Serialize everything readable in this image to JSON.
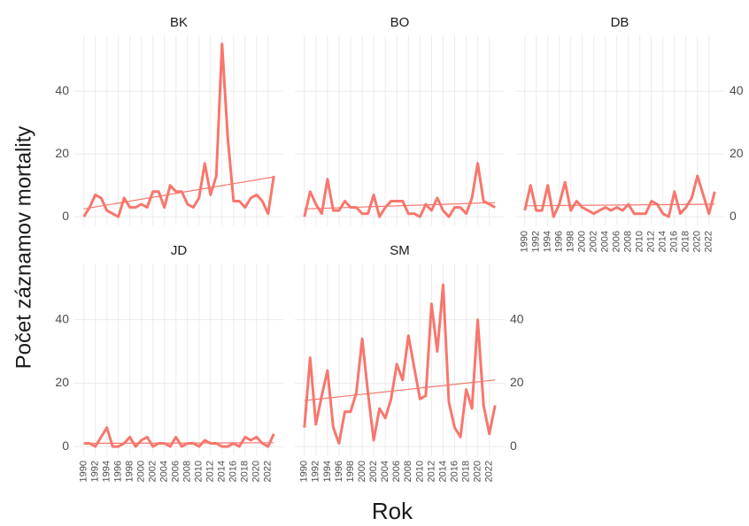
{
  "chart_data": [
    {
      "type": "line",
      "title": "BK",
      "x": [
        1990,
        1991,
        1992,
        1993,
        1994,
        1995,
        1996,
        1997,
        1998,
        1999,
        2000,
        2001,
        2002,
        2003,
        2004,
        2005,
        2006,
        2007,
        2008,
        2009,
        2010,
        2011,
        2012,
        2013,
        2014,
        2015,
        2016,
        2017,
        2018,
        2019,
        2020,
        2021,
        2022,
        2023
      ],
      "values": [
        0,
        3,
        7,
        6,
        2,
        1,
        0,
        6,
        3,
        3,
        4,
        3,
        8,
        8,
        3,
        10,
        8,
        8,
        4,
        3,
        6,
        17,
        7,
        13,
        55,
        25,
        5,
        5,
        3,
        6,
        7,
        5,
        1,
        13
      ],
      "trend_line": {
        "x": [
          1990,
          2023
        ],
        "values": [
          2.5,
          12.7
        ]
      },
      "color": "#f8766d",
      "xlim": [
        1988.35,
        2024.65
      ],
      "ylim": [
        -2.75,
        57.75
      ],
      "xticks": [
        1990,
        1992,
        1994,
        1996,
        1998,
        2000,
        2002,
        2004,
        2006,
        2008,
        2010,
        2012,
        2014,
        2016,
        2018,
        2020,
        2022
      ],
      "yticks": [
        0,
        20,
        40
      ],
      "grid": true,
      "y_axis_side": "left",
      "show_x_labels": false
    },
    {
      "type": "line",
      "title": "BO",
      "x": [
        1990,
        1991,
        1992,
        1993,
        1994,
        1995,
        1996,
        1997,
        1998,
        1999,
        2000,
        2001,
        2002,
        2003,
        2004,
        2005,
        2006,
        2007,
        2008,
        2009,
        2010,
        2011,
        2012,
        2013,
        2014,
        2015,
        2016,
        2017,
        2018,
        2019,
        2020,
        2021,
        2022,
        2023
      ],
      "values": [
        0,
        8,
        4,
        1,
        12,
        2,
        2,
        5,
        3,
        3,
        1,
        1,
        7,
        0,
        3,
        5,
        5,
        5,
        1,
        1,
        0,
        4,
        2,
        6,
        2,
        0,
        3,
        3,
        1,
        6,
        17,
        5,
        4,
        3
      ],
      "trend_line": {
        "x": [
          1990,
          2023
        ],
        "values": [
          2.5,
          4.5
        ]
      },
      "color": "#f8766d",
      "xlim": [
        1988.35,
        2024.65
      ],
      "ylim": [
        -2.75,
        57.75
      ],
      "xticks": [
        1990,
        1992,
        1994,
        1996,
        1998,
        2000,
        2002,
        2004,
        2006,
        2008,
        2010,
        2012,
        2014,
        2016,
        2018,
        2020,
        2022
      ],
      "yticks": [
        0,
        20,
        40
      ],
      "grid": true,
      "y_axis_side": "none",
      "show_x_labels": false
    },
    {
      "type": "line",
      "title": "DB",
      "x": [
        1990,
        1991,
        1992,
        1993,
        1994,
        1995,
        1996,
        1997,
        1998,
        1999,
        2000,
        2001,
        2002,
        2003,
        2004,
        2005,
        2006,
        2007,
        2008,
        2009,
        2010,
        2011,
        2012,
        2013,
        2014,
        2015,
        2016,
        2017,
        2018,
        2019,
        2020,
        2021,
        2022,
        2023
      ],
      "values": [
        2,
        10,
        2,
        2,
        10,
        0,
        4,
        11,
        2,
        5,
        3,
        2,
        1,
        2,
        3,
        2,
        3,
        2,
        4,
        1,
        1,
        1,
        5,
        4,
        1,
        0,
        8,
        1,
        3,
        6,
        13,
        7,
        1,
        8
      ],
      "trend_line": {
        "x": [
          1990,
          2023
        ],
        "values": [
          3.5,
          4
        ]
      },
      "color": "#f8766d",
      "xlim": [
        1988.35,
        2024.65
      ],
      "ylim": [
        -2.75,
        57.75
      ],
      "xticks": [
        1990,
        1992,
        1994,
        1996,
        1998,
        2000,
        2002,
        2004,
        2006,
        2008,
        2010,
        2012,
        2014,
        2016,
        2018,
        2020,
        2022
      ],
      "yticks": [
        0,
        20,
        40
      ],
      "grid": true,
      "y_axis_side": "right",
      "show_x_labels": true
    },
    {
      "type": "line",
      "title": "JD",
      "x": [
        1990,
        1991,
        1992,
        1993,
        1994,
        1995,
        1996,
        1997,
        1998,
        1999,
        2000,
        2001,
        2002,
        2003,
        2004,
        2005,
        2006,
        2007,
        2008,
        2009,
        2010,
        2011,
        2012,
        2013,
        2014,
        2015,
        2016,
        2017,
        2018,
        2019,
        2020,
        2021,
        2022,
        2023
      ],
      "values": [
        1,
        1,
        0,
        3,
        6,
        0,
        0,
        1,
        3,
        0,
        2,
        3,
        0,
        1,
        1,
        0,
        3,
        0,
        1,
        1,
        0,
        2,
        1,
        1,
        0,
        0,
        1,
        0,
        3,
        2,
        3,
        1,
        0,
        4
      ],
      "trend_line": {
        "x": [
          1990,
          2023
        ],
        "values": [
          1,
          1.2
        ]
      },
      "color": "#f8766d",
      "xlim": [
        1988.35,
        2024.65
      ],
      "ylim": [
        -2.75,
        57.75
      ],
      "xticks": [
        1990,
        1992,
        1994,
        1996,
        1998,
        2000,
        2002,
        2004,
        2006,
        2008,
        2010,
        2012,
        2014,
        2016,
        2018,
        2020,
        2022
      ],
      "yticks": [
        0,
        20,
        40
      ],
      "grid": true,
      "y_axis_side": "left",
      "show_x_labels": true
    },
    {
      "type": "line",
      "title": "SM",
      "x": [
        1990,
        1991,
        1992,
        1993,
        1994,
        1995,
        1996,
        1997,
        1998,
        1999,
        2000,
        2001,
        2002,
        2003,
        2004,
        2005,
        2006,
        2007,
        2008,
        2009,
        2010,
        2011,
        2012,
        2013,
        2014,
        2015,
        2016,
        2017,
        2018,
        2019,
        2020,
        2021,
        2022,
        2023
      ],
      "values": [
        6,
        28,
        7,
        16,
        24,
        6,
        1,
        11,
        11,
        17,
        34,
        17,
        2,
        12,
        9,
        15,
        26,
        21,
        35,
        25,
        15,
        16,
        45,
        30,
        51,
        14,
        6,
        3,
        18,
        12,
        40,
        13,
        4,
        13
      ],
      "trend_line": {
        "x": [
          1990,
          2023
        ],
        "values": [
          14.5,
          21
        ]
      },
      "color": "#f8766d",
      "xlim": [
        1988.35,
        2024.65
      ],
      "ylim": [
        -2.75,
        57.75
      ],
      "xticks": [
        1990,
        1992,
        1994,
        1996,
        1998,
        2000,
        2002,
        2004,
        2006,
        2008,
        2010,
        2012,
        2014,
        2016,
        2018,
        2020,
        2022
      ],
      "yticks": [
        0,
        20,
        40
      ],
      "grid": true,
      "y_axis_side": "right",
      "show_x_labels": true
    }
  ],
  "x_label": "Rok",
  "y_label": "Počet záznamov mortality"
}
